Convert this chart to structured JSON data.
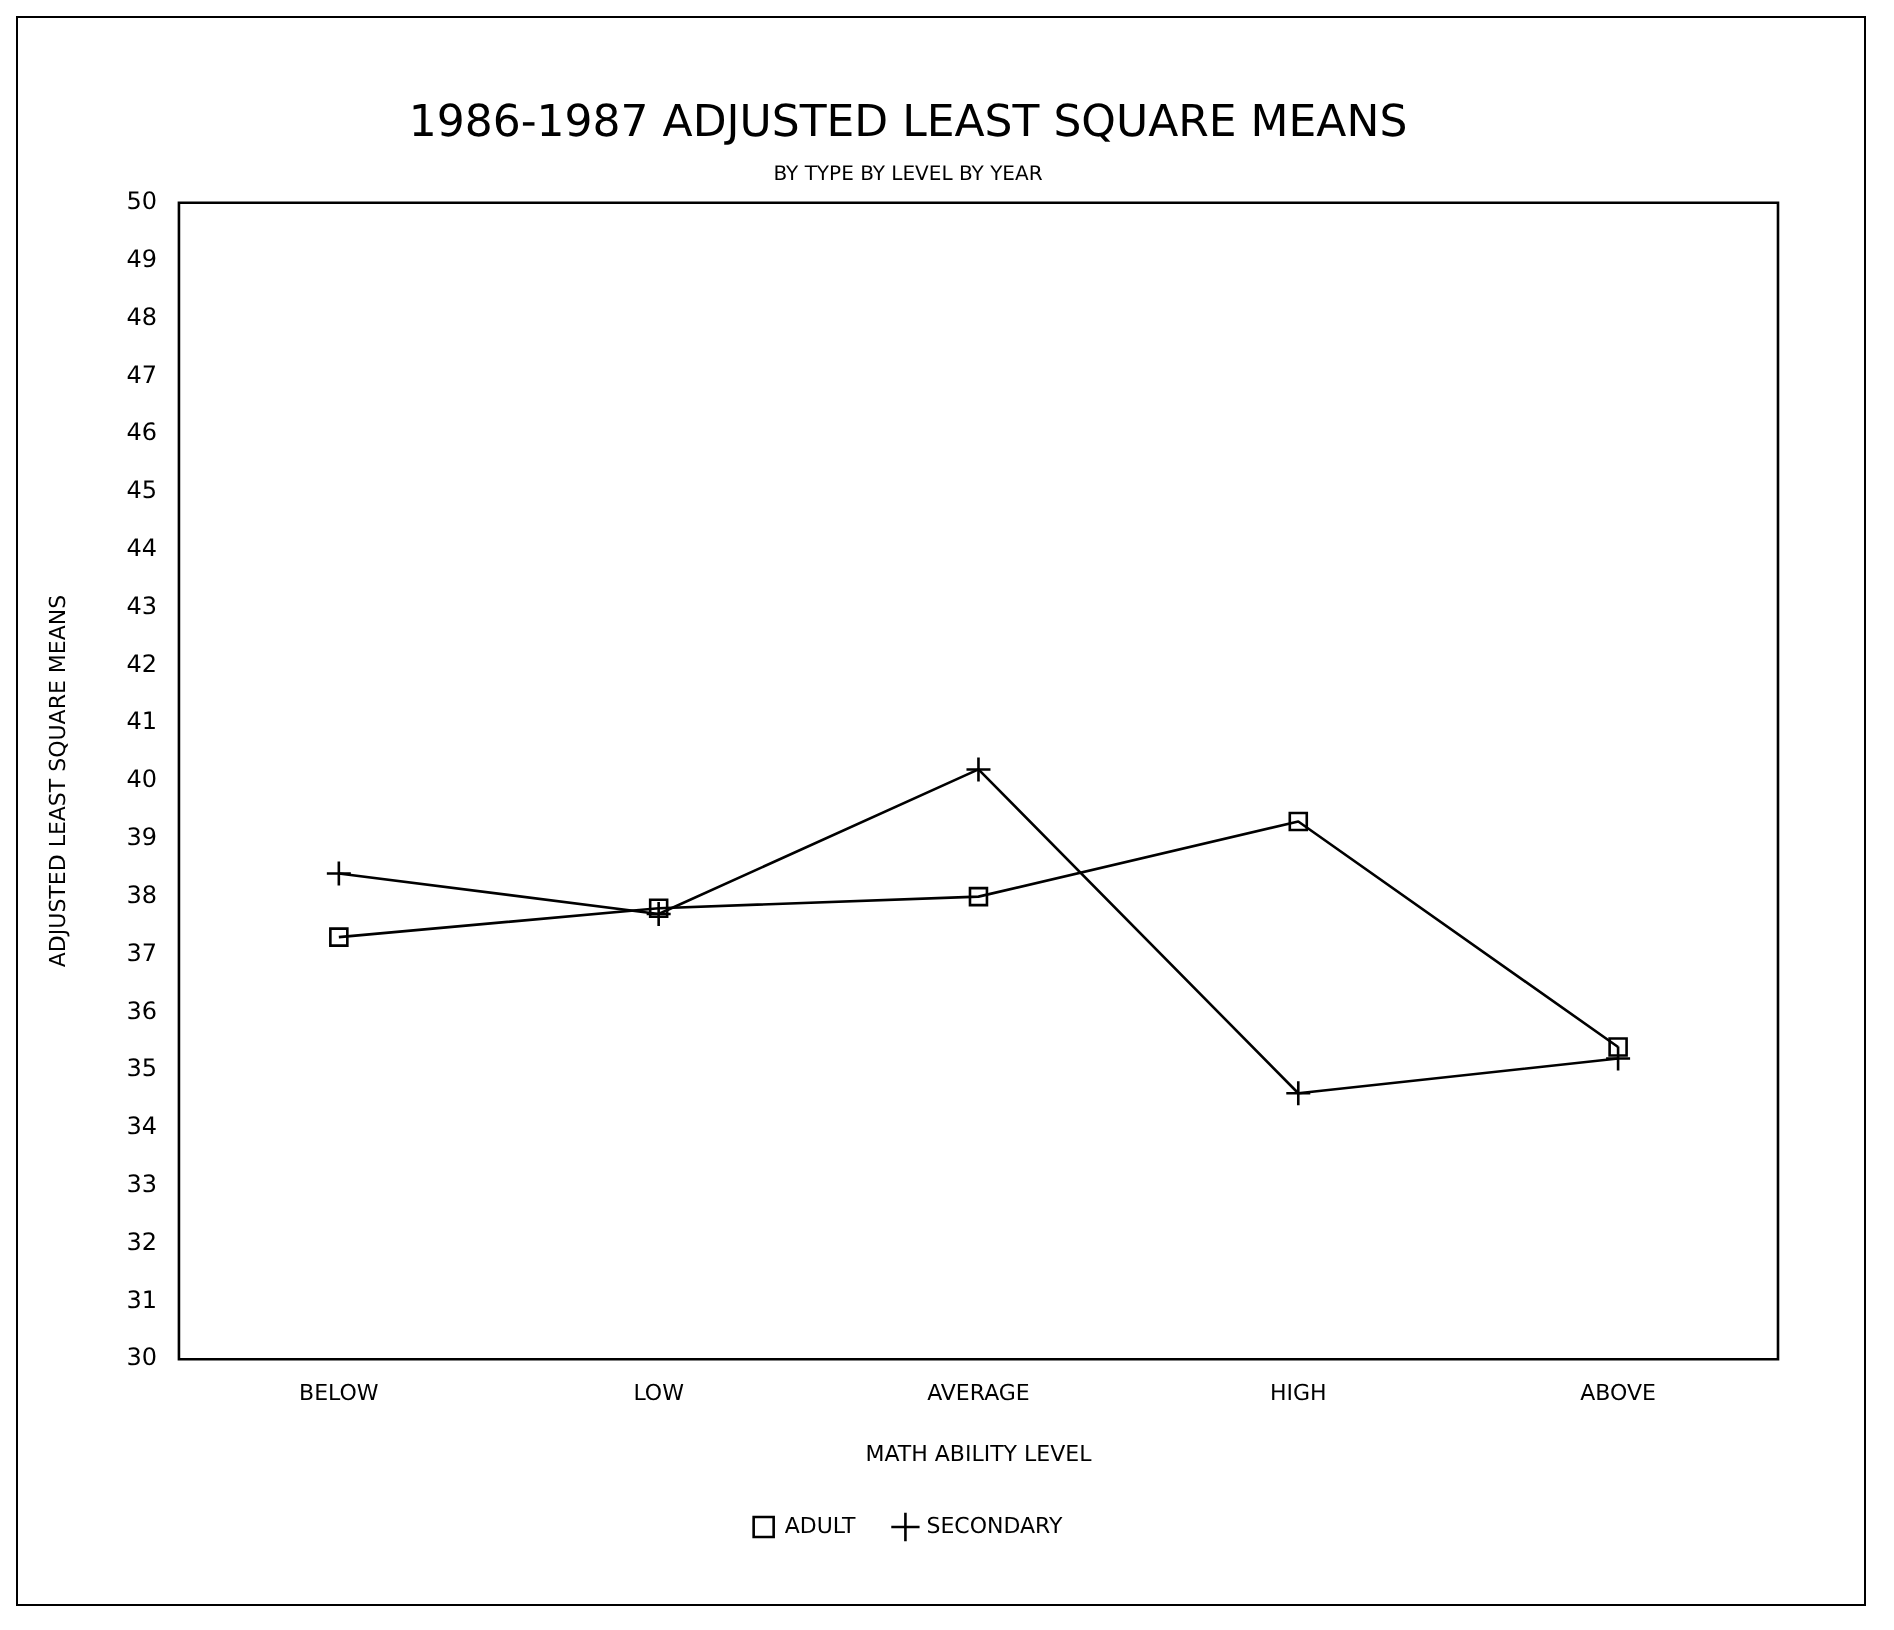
{
  "chart_data": {
    "type": "line",
    "title": "1986-1987 ADJUSTED LEAST SQUARE MEANS",
    "subtitle": "BY TYPE BY LEVEL BY YEAR",
    "xlabel": "MATH ABILITY LEVEL",
    "ylabel": "ADJUSTED LEAST SQUARE MEANS",
    "categories": [
      "BELOW",
      "LOW",
      "AVERAGE",
      "HIGH",
      "ABOVE"
    ],
    "series": [
      {
        "name": "ADULT",
        "color": "#000000",
        "marker": "square",
        "values": [
          37.3,
          37.8,
          38.0,
          39.3,
          35.4
        ]
      },
      {
        "name": "SECONDARY",
        "color": "#000000",
        "marker": "cross",
        "values": [
          38.4,
          37.7,
          40.2,
          34.6,
          35.2
        ]
      }
    ],
    "ylim": [
      30,
      50
    ],
    "yticks": [
      30,
      31,
      32,
      33,
      34,
      35,
      36,
      37,
      38,
      39,
      40,
      41,
      42,
      43,
      44,
      45,
      46,
      47,
      48,
      49,
      50
    ],
    "grid": false,
    "legend": "bottom",
    "line_style": "solid"
  }
}
